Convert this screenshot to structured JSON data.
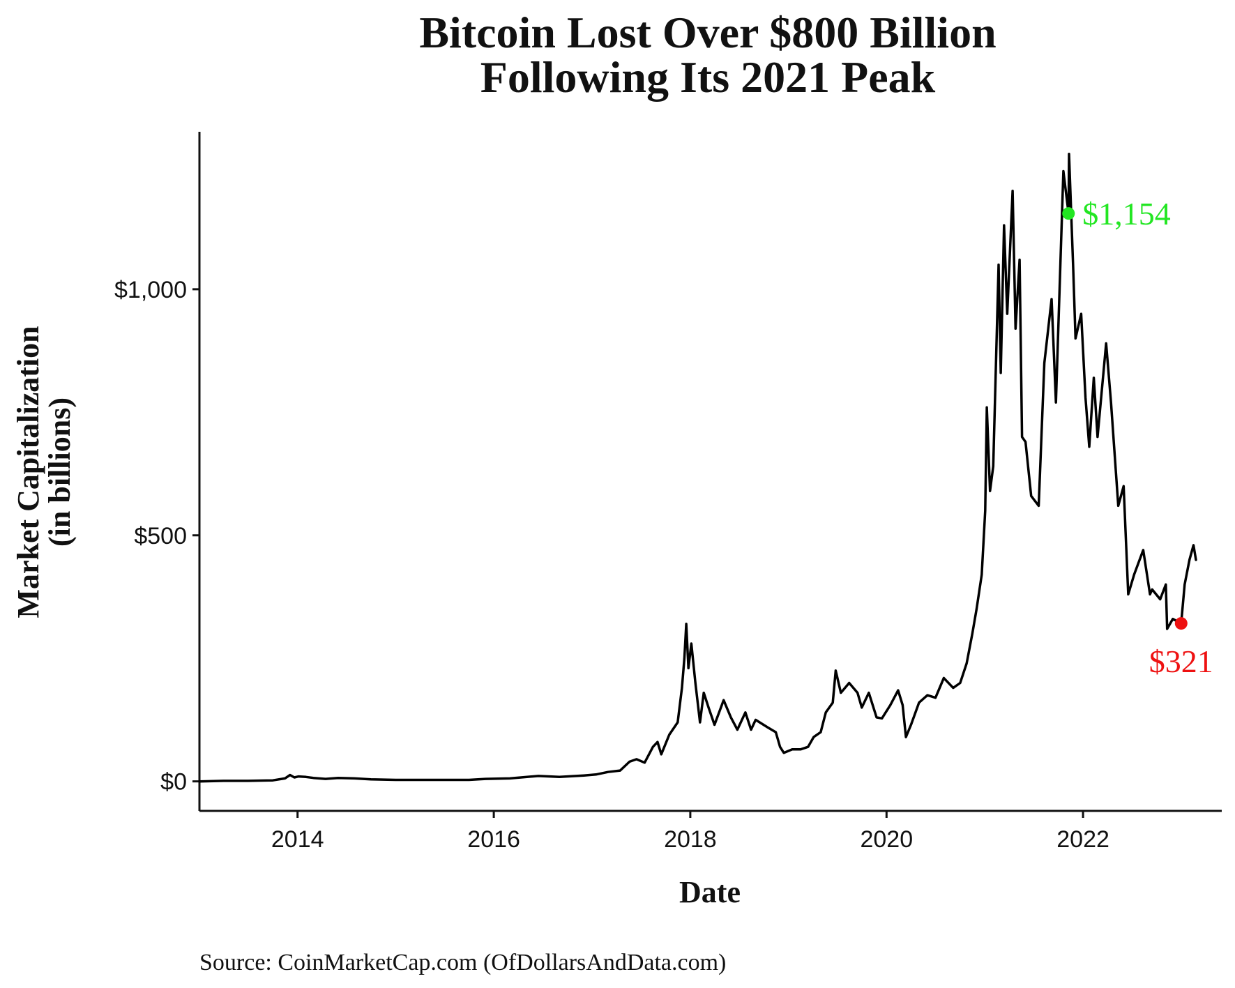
{
  "chart_data": {
    "type": "line",
    "title": [
      "Bitcoin Lost Over $800 Billion",
      "Following Its 2021 Peak"
    ],
    "xlabel": "Date",
    "ylabel": [
      "Market Capitalization",
      "(in billions)"
    ],
    "source": "Source:  CoinMarketCap.com (OfDollarsAndData.com)",
    "x_ticks": [
      "2014",
      "2016",
      "2018",
      "2020",
      "2022"
    ],
    "y_ticks": [
      "$0",
      "$500",
      "$1,000"
    ],
    "y_tick_values": [
      0,
      500,
      1000
    ],
    "xlim": [
      "2013-01-01",
      "2023-06-01"
    ],
    "ylim": [
      -60,
      1320
    ],
    "grid": false,
    "line_color": "#000000",
    "annotations": [
      {
        "label": "$1,154",
        "date": "2021-11-08",
        "value": 1154,
        "color": "#22e622"
      },
      {
        "label": "$321",
        "date": "2023-01-01",
        "value": 321,
        "color": "#ee1111"
      }
    ],
    "series": [
      {
        "points": [
          [
            "2013-01-01",
            0
          ],
          [
            "2013-04-01",
            1
          ],
          [
            "2013-07-01",
            1
          ],
          [
            "2013-10-01",
            2
          ],
          [
            "2013-11-15",
            6
          ],
          [
            "2013-12-04",
            13
          ],
          [
            "2013-12-20",
            8
          ],
          [
            "2014-01-05",
            10
          ],
          [
            "2014-02-01",
            9
          ],
          [
            "2014-03-01",
            7
          ],
          [
            "2014-04-15",
            5
          ],
          [
            "2014-06-01",
            7
          ],
          [
            "2014-08-01",
            6
          ],
          [
            "2014-10-01",
            4
          ],
          [
            "2015-01-01",
            3
          ],
          [
            "2015-06-01",
            3
          ],
          [
            "2015-10-01",
            3
          ],
          [
            "2015-12-01",
            5
          ],
          [
            "2016-03-01",
            6
          ],
          [
            "2016-06-15",
            11
          ],
          [
            "2016-09-01",
            9
          ],
          [
            "2016-12-01",
            12
          ],
          [
            "2017-01-15",
            14
          ],
          [
            "2017-03-01",
            19
          ],
          [
            "2017-04-15",
            22
          ],
          [
            "2017-05-20",
            40
          ],
          [
            "2017-06-15",
            45
          ],
          [
            "2017-07-15",
            38
          ],
          [
            "2017-08-15",
            70
          ],
          [
            "2017-09-01",
            80
          ],
          [
            "2017-09-15",
            55
          ],
          [
            "2017-10-15",
            95
          ],
          [
            "2017-11-15",
            120
          ],
          [
            "2017-12-01",
            190
          ],
          [
            "2017-12-10",
            250
          ],
          [
            "2017-12-17",
            320
          ],
          [
            "2017-12-25",
            230
          ],
          [
            "2018-01-05",
            280
          ],
          [
            "2018-01-20",
            200
          ],
          [
            "2018-02-06",
            120
          ],
          [
            "2018-02-20",
            180
          ],
          [
            "2018-03-10",
            150
          ],
          [
            "2018-04-01",
            115
          ],
          [
            "2018-05-05",
            165
          ],
          [
            "2018-06-01",
            130
          ],
          [
            "2018-06-25",
            105
          ],
          [
            "2018-07-25",
            140
          ],
          [
            "2018-08-15",
            105
          ],
          [
            "2018-09-01",
            125
          ],
          [
            "2018-10-15",
            110
          ],
          [
            "2018-11-15",
            100
          ],
          [
            "2018-12-01",
            70
          ],
          [
            "2018-12-15",
            58
          ],
          [
            "2019-01-15",
            65
          ],
          [
            "2019-02-15",
            65
          ],
          [
            "2019-03-15",
            70
          ],
          [
            "2019-04-05",
            90
          ],
          [
            "2019-05-01",
            100
          ],
          [
            "2019-05-20",
            140
          ],
          [
            "2019-06-15",
            160
          ],
          [
            "2019-06-26",
            225
          ],
          [
            "2019-07-15",
            180
          ],
          [
            "2019-08-15",
            200
          ],
          [
            "2019-09-15",
            180
          ],
          [
            "2019-10-01",
            150
          ],
          [
            "2019-10-27",
            180
          ],
          [
            "2019-11-25",
            130
          ],
          [
            "2019-12-15",
            128
          ],
          [
            "2020-01-15",
            155
          ],
          [
            "2020-02-13",
            185
          ],
          [
            "2020-03-01",
            155
          ],
          [
            "2020-03-13",
            90
          ],
          [
            "2020-04-01",
            115
          ],
          [
            "2020-05-01",
            160
          ],
          [
            "2020-06-01",
            175
          ],
          [
            "2020-07-01",
            170
          ],
          [
            "2020-08-01",
            210
          ],
          [
            "2020-09-05",
            190
          ],
          [
            "2020-10-01",
            200
          ],
          [
            "2020-10-25",
            240
          ],
          [
            "2020-11-15",
            300
          ],
          [
            "2020-12-01",
            350
          ],
          [
            "2020-12-20",
            420
          ],
          [
            "2021-01-02",
            550
          ],
          [
            "2021-01-08",
            760
          ],
          [
            "2021-01-20",
            590
          ],
          [
            "2021-02-01",
            640
          ],
          [
            "2021-02-21",
            1050
          ],
          [
            "2021-03-01",
            830
          ],
          [
            "2021-03-13",
            1130
          ],
          [
            "2021-03-25",
            950
          ],
          [
            "2021-04-14",
            1200
          ],
          [
            "2021-04-25",
            920
          ],
          [
            "2021-05-10",
            1060
          ],
          [
            "2021-05-19",
            700
          ],
          [
            "2021-06-01",
            690
          ],
          [
            "2021-06-22",
            580
          ],
          [
            "2021-07-20",
            560
          ],
          [
            "2021-08-10",
            850
          ],
          [
            "2021-09-06",
            980
          ],
          [
            "2021-09-22",
            770
          ],
          [
            "2021-10-20",
            1240
          ],
          [
            "2021-11-08",
            1154
          ],
          [
            "2021-11-10",
            1275
          ],
          [
            "2021-11-25",
            1050
          ],
          [
            "2021-12-04",
            900
          ],
          [
            "2021-12-25",
            950
          ],
          [
            "2022-01-10",
            780
          ],
          [
            "2022-01-24",
            680
          ],
          [
            "2022-02-10",
            820
          ],
          [
            "2022-02-24",
            700
          ],
          [
            "2022-03-28",
            890
          ],
          [
            "2022-04-15",
            770
          ],
          [
            "2022-05-12",
            560
          ],
          [
            "2022-06-01",
            600
          ],
          [
            "2022-06-18",
            380
          ],
          [
            "2022-07-10",
            420
          ],
          [
            "2022-08-13",
            470
          ],
          [
            "2022-09-07",
            380
          ],
          [
            "2022-09-15",
            390
          ],
          [
            "2022-10-15",
            370
          ],
          [
            "2022-11-05",
            400
          ],
          [
            "2022-11-10",
            310
          ],
          [
            "2022-12-01",
            330
          ],
          [
            "2023-01-01",
            321
          ],
          [
            "2023-01-14",
            400
          ],
          [
            "2023-02-01",
            450
          ],
          [
            "2023-02-16",
            480
          ],
          [
            "2023-02-25",
            450
          ]
        ]
      }
    ]
  }
}
